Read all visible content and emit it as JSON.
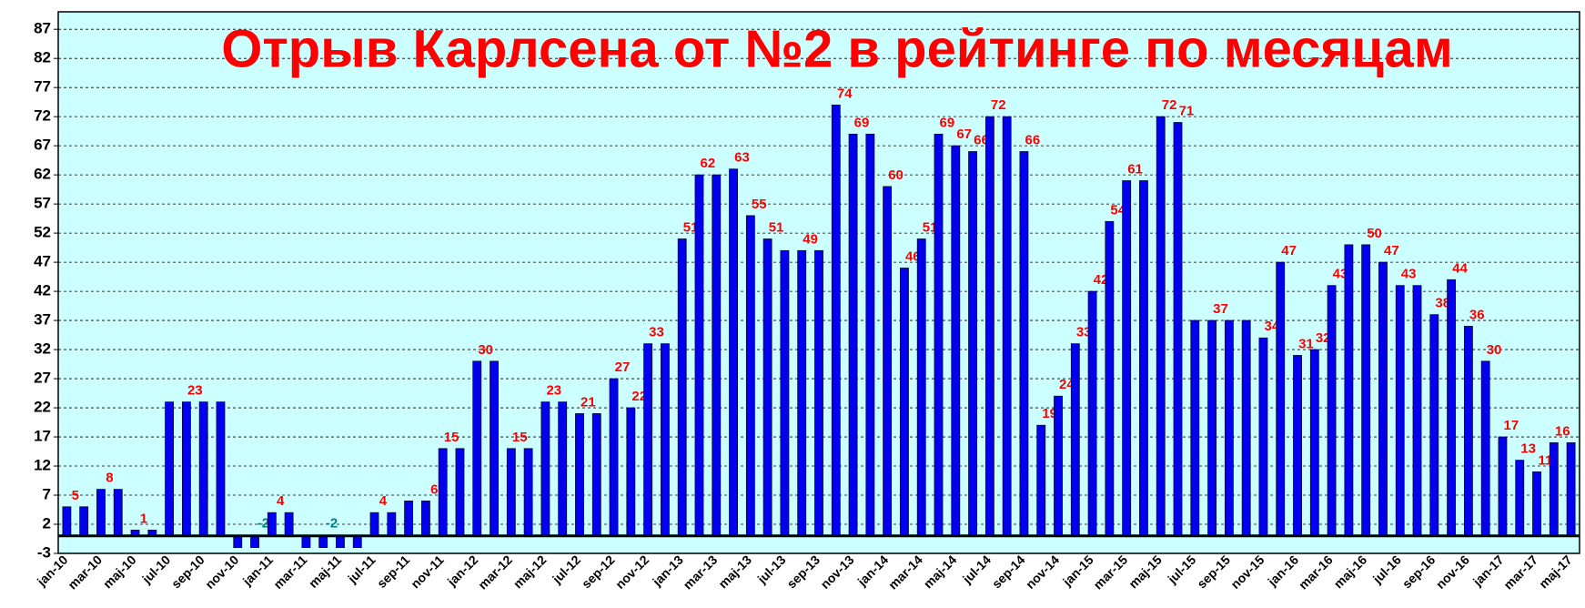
{
  "chart_data": {
    "type": "bar",
    "title": "Отрыв Карлсена от №2 в рейтинге по месяцам",
    "categories": [
      "jan-10",
      null,
      "mar-10",
      null,
      "maj-10",
      null,
      "jul-10",
      null,
      "sep-10",
      null,
      "nov-10",
      null,
      "jan-11",
      null,
      "mar-11",
      null,
      "maj-11",
      null,
      "jul-11",
      null,
      "sep-11",
      null,
      "nov-11",
      null,
      "jan-12",
      null,
      "mar-12",
      null,
      "maj-12",
      null,
      "jul-12",
      null,
      "sep-12",
      null,
      "nov-12",
      null,
      "jan-13",
      null,
      "mar-13",
      null,
      "maj-13",
      null,
      "jul-13",
      null,
      "sep-13",
      null,
      "nov-13",
      null,
      "jan-14",
      null,
      "mar-14",
      null,
      "maj-14",
      null,
      "jul-14",
      null,
      "sep-14",
      null,
      "nov-14",
      null,
      "jan-15",
      null,
      "mar-15",
      null,
      "maj-15",
      null,
      "jul-15",
      null,
      "sep-15",
      null,
      "nov-15",
      null,
      "jan-16",
      null,
      "mar-16",
      null,
      "maj-16",
      null,
      "jul-16",
      null,
      "sep-16",
      null,
      "nov-16",
      null,
      "jan-17",
      null,
      "mar-17",
      null,
      "maj-17"
    ],
    "values": [
      5,
      5,
      8,
      8,
      1,
      1,
      23,
      23,
      23,
      23,
      -2,
      -2,
      4,
      4,
      -2,
      -2,
      -2,
      -2,
      4,
      4,
      6,
      6,
      15,
      15,
      30,
      30,
      15,
      15,
      23,
      23,
      21,
      21,
      27,
      22,
      33,
      33,
      51,
      62,
      62,
      63,
      55,
      51,
      49,
      49,
      49,
      74,
      69,
      69,
      60,
      46,
      51,
      69,
      67,
      66,
      72,
      72,
      66,
      19,
      24,
      33,
      42,
      54,
      61,
      61,
      72,
      71,
      37,
      37,
      37,
      37,
      34,
      47,
      31,
      32,
      43,
      50,
      50,
      47,
      43,
      43,
      38,
      44,
      36,
      30,
      17,
      13,
      11,
      16,
      16
    ],
    "value_labels": [
      "5",
      null,
      "8",
      null,
      "1",
      null,
      null,
      "23",
      null,
      null,
      null,
      "-2",
      "4",
      null,
      null,
      "-2",
      null,
      null,
      "4",
      null,
      null,
      "6",
      "15",
      null,
      "30",
      null,
      "15",
      null,
      "23",
      null,
      "21",
      null,
      "27",
      "22",
      "33",
      null,
      "51",
      "62",
      null,
      "63",
      "55",
      "51",
      null,
      "49",
      null,
      "74",
      "69",
      null,
      "60",
      "46",
      "51",
      "69",
      "67",
      "66",
      "72",
      null,
      "66",
      "19",
      "24",
      "33",
      "42",
      "54",
      "61",
      null,
      "72",
      "71",
      null,
      "37",
      null,
      null,
      "34",
      "47",
      "31",
      "32",
      "43",
      null,
      "50",
      "47",
      "43",
      null,
      "38",
      "44",
      "36",
      "30",
      "17",
      "13",
      "11",
      "16",
      null
    ],
    "color": "#0000ee",
    "label_color": "#ff0000",
    "negative_label_color": "#008080",
    "title_color": "#ff0000",
    "plot_background": "#ccffff",
    "ylim": [
      -3,
      90
    ],
    "yticks": [
      -3,
      2,
      7,
      12,
      17,
      22,
      27,
      32,
      37,
      42,
      47,
      52,
      57,
      62,
      67,
      72,
      77,
      82,
      87
    ],
    "grid": true
  }
}
